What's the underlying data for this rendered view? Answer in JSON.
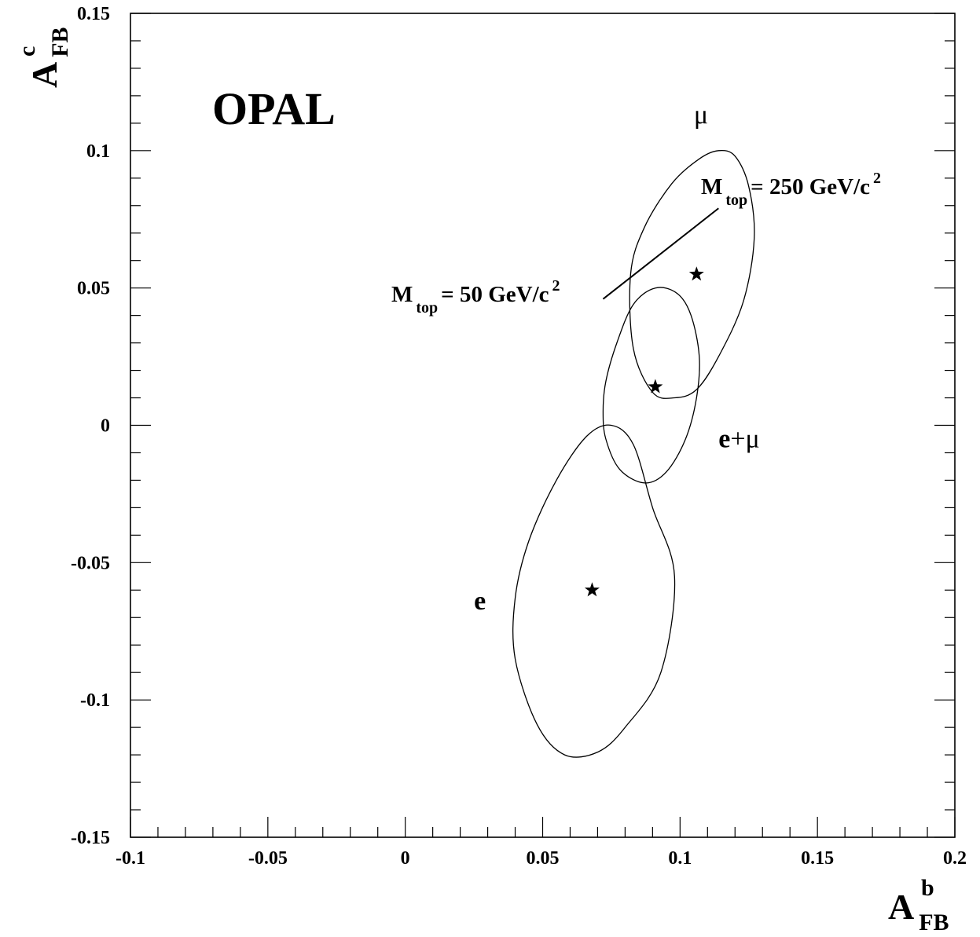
{
  "chart_data": {
    "type": "scatter",
    "experiment_label": "OPAL",
    "xlabel": {
      "main": "A",
      "sub": "FB",
      "sup": "b"
    },
    "ylabel": {
      "main": "A",
      "sub": "FB",
      "sup": "c"
    },
    "xlim": [
      -0.1,
      0.2
    ],
    "ylim": [
      -0.15,
      0.15
    ],
    "x_ticks": [
      -0.1,
      -0.05,
      0,
      0.05,
      0.1,
      0.15,
      0.2
    ],
    "x_tick_labels": [
      "-0.1",
      "-0.05",
      "0",
      "0.05",
      "0.1",
      "0.15",
      "0.2"
    ],
    "y_ticks": [
      -0.15,
      -0.1,
      -0.05,
      0,
      0.05,
      0.1,
      0.15
    ],
    "y_tick_labels": [
      "-0.15",
      "-0.1",
      "-0.05",
      "0",
      "0.05",
      "0.1",
      "0.15"
    ],
    "x_minor_step": 0.01,
    "y_minor_step": 0.01,
    "grid": false,
    "legend": "none",
    "series": [
      {
        "name": "e",
        "label_parts": [
          "e"
        ],
        "label_pos": [
          0.025,
          -0.067
        ],
        "center": [
          0.068,
          -0.06
        ],
        "contour": [
          [
            0.058,
            -0.12
          ],
          [
            0.048,
            -0.109
          ],
          [
            0.04,
            -0.085
          ],
          [
            0.04,
            -0.063
          ],
          [
            0.045,
            -0.042
          ],
          [
            0.055,
            -0.02
          ],
          [
            0.066,
            -0.004
          ],
          [
            0.075,
            0.0
          ],
          [
            0.083,
            -0.007
          ],
          [
            0.09,
            -0.03
          ],
          [
            0.098,
            -0.055
          ],
          [
            0.093,
            -0.09
          ],
          [
            0.08,
            -0.11
          ],
          [
            0.07,
            -0.119
          ],
          [
            0.058,
            -0.12
          ]
        ]
      },
      {
        "name": "e+μ",
        "label_parts": [
          "e",
          "+μ"
        ],
        "label_pos": [
          0.114,
          -0.008
        ],
        "center": [
          0.091,
          0.014
        ],
        "contour": [
          [
            0.087,
            -0.021
          ],
          [
            0.078,
            -0.016
          ],
          [
            0.073,
            -0.005
          ],
          [
            0.072,
            0.005
          ],
          [
            0.073,
            0.016
          ],
          [
            0.077,
            0.03
          ],
          [
            0.083,
            0.044
          ],
          [
            0.091,
            0.05
          ],
          [
            0.099,
            0.048
          ],
          [
            0.104,
            0.04
          ],
          [
            0.107,
            0.025
          ],
          [
            0.106,
            0.01
          ],
          [
            0.102,
            -0.005
          ],
          [
            0.095,
            -0.017
          ],
          [
            0.087,
            -0.021
          ]
        ]
      },
      {
        "name": "μ",
        "label_parts": [
          "μ"
        ],
        "label_pos": [
          0.105,
          0.11
        ],
        "center": [
          0.106,
          0.055
        ],
        "contour": [
          [
            0.098,
            0.01
          ],
          [
            0.09,
            0.012
          ],
          [
            0.083,
            0.028
          ],
          [
            0.082,
            0.055
          ],
          [
            0.087,
            0.072
          ],
          [
            0.097,
            0.088
          ],
          [
            0.107,
            0.097
          ],
          [
            0.114,
            0.1
          ],
          [
            0.12,
            0.098
          ],
          [
            0.125,
            0.087
          ],
          [
            0.127,
            0.068
          ],
          [
            0.123,
            0.045
          ],
          [
            0.114,
            0.025
          ],
          [
            0.106,
            0.013
          ],
          [
            0.098,
            0.01
          ]
        ]
      }
    ],
    "mtop_line": {
      "points": [
        [
          0.072,
          0.046
        ],
        [
          0.114,
          0.079
        ]
      ],
      "label_low": {
        "main": "M",
        "sub": "top",
        "rest": " = 50 GeV/c",
        "sup": "2"
      },
      "label_high": {
        "main": "M",
        "sub": "top",
        "rest": " = 250 GeV/c",
        "sup": "2"
      }
    }
  }
}
